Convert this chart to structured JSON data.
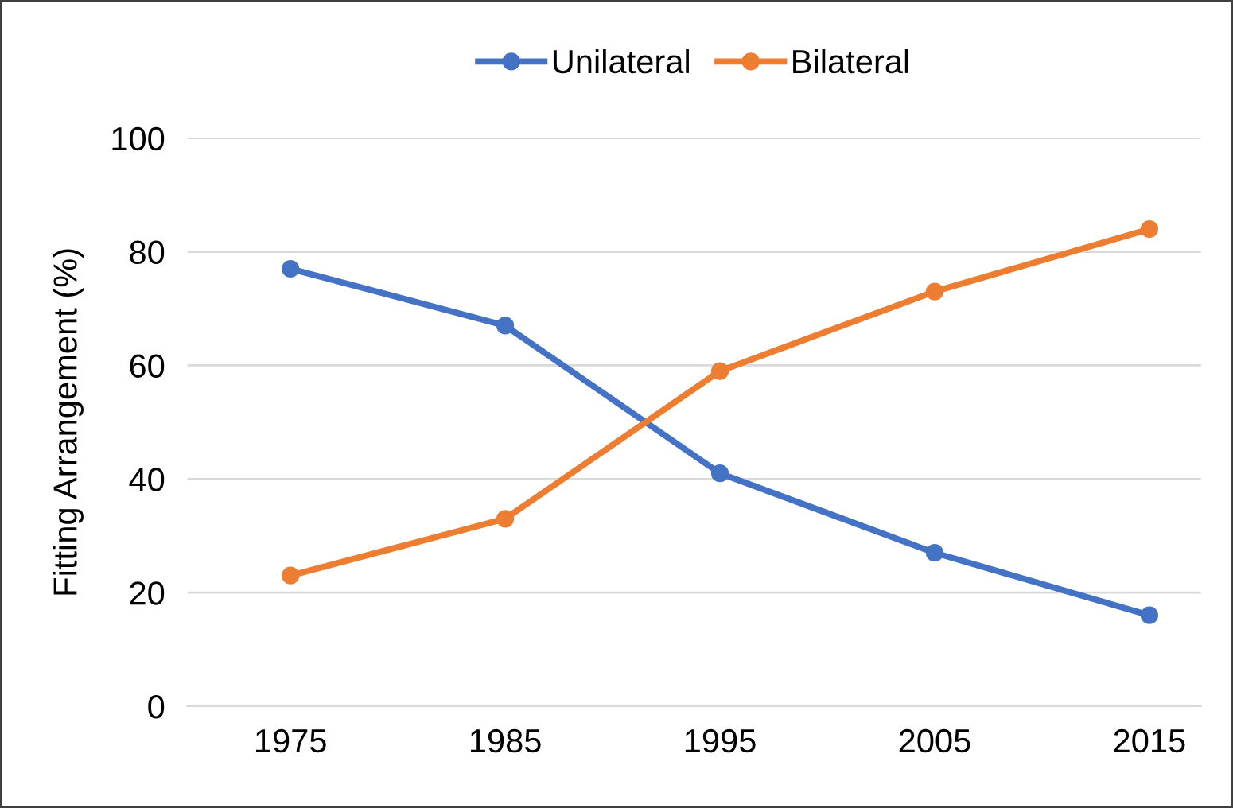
{
  "chart_data": {
    "type": "line",
    "ylabel": "Fitting Arrangement (%)",
    "categories": [
      "1975",
      "1985",
      "1995",
      "2005",
      "2015"
    ],
    "series": [
      {
        "name": "Unilateral",
        "color": "#4472c4",
        "values": [
          77,
          67,
          41,
          27,
          16
        ]
      },
      {
        "name": "Bilateral",
        "color": "#ed7d31",
        "values": [
          23,
          33,
          59,
          73,
          84
        ]
      }
    ],
    "ylim": [
      0,
      100
    ],
    "yticks": [
      0,
      20,
      40,
      60,
      80,
      100
    ],
    "grid": "y",
    "legend": "top",
    "marker": "circle",
    "line_style": "solid"
  }
}
